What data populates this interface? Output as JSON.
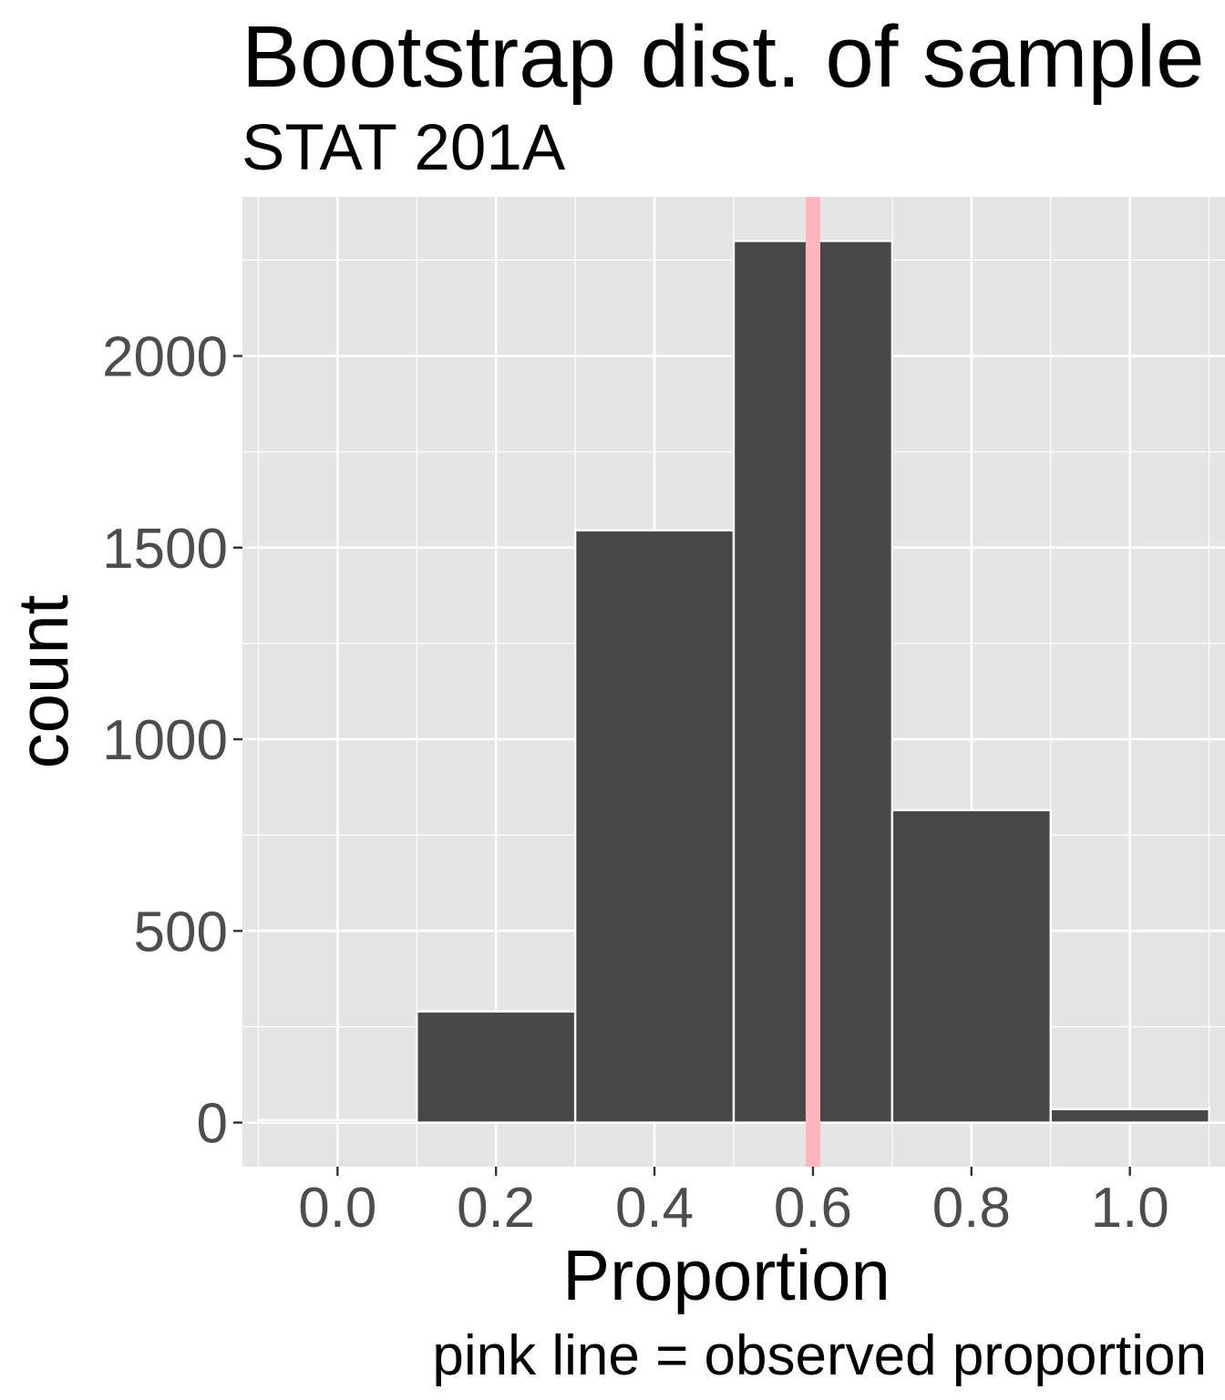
{
  "chart_data": {
    "type": "bar",
    "title": "Bootstrap dist. of sample",
    "subtitle": "STAT 201A",
    "xlabel": "Proportion",
    "ylabel": "count",
    "caption": "pink line = observed proportion",
    "bin_width": 0.2,
    "bins": [
      {
        "x": 0.0,
        "count": 6
      },
      {
        "x": 0.2,
        "count": 290
      },
      {
        "x": 0.4,
        "count": 1545
      },
      {
        "x": 0.6,
        "count": 2300
      },
      {
        "x": 0.8,
        "count": 815
      },
      {
        "x": 1.0,
        "count": 35
      }
    ],
    "observed_proportion": 0.6,
    "xlim": [
      -0.12,
      1.12
    ],
    "ylim": [
      -115,
      2415
    ],
    "xticks": [
      {
        "value": 0.0,
        "label": "0.0"
      },
      {
        "value": 0.2,
        "label": "0.2"
      },
      {
        "value": 0.4,
        "label": "0.4"
      },
      {
        "value": 0.6,
        "label": "0.6"
      },
      {
        "value": 0.8,
        "label": "0.8"
      },
      {
        "value": 1.0,
        "label": "1.0"
      }
    ],
    "yticks": [
      {
        "value": 0,
        "label": "0"
      },
      {
        "value": 500,
        "label": "500"
      },
      {
        "value": 1000,
        "label": "1000"
      },
      {
        "value": 1500,
        "label": "1500"
      },
      {
        "value": 2000,
        "label": "2000"
      }
    ],
    "grid": true,
    "colors": {
      "panel_background": "#e5e5e5",
      "grid": "#ffffff",
      "bar_fill": "#474747",
      "bar_outline": "#ffffff",
      "observed_line": "#ffb6c1",
      "tick_text": "#4d4d4d",
      "title_text": "#000000"
    }
  }
}
